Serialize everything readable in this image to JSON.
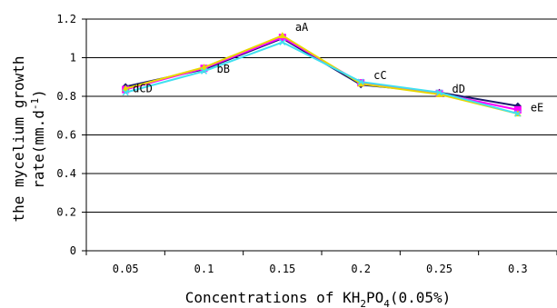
{
  "chart_data": {
    "type": "line",
    "x": [
      "0.05",
      "0.1",
      "0.15",
      "0.2",
      "0.25",
      "0.3"
    ],
    "xlabel": {
      "main": "Concentrations of KH",
      "sub1": "2",
      "mid": "PO",
      "sub2": "4",
      "tail": "(0.05%)"
    },
    "ylabel": {
      "line1": "the mycelium growth",
      "line2_main": "rate(mm.d",
      "line2_sup": "-1",
      "line2_tail": ")"
    },
    "yticks": [
      "0",
      "0.2",
      "0.4",
      "0.6",
      "0.8",
      "1",
      "1.2"
    ],
    "ylim": [
      0,
      1.2
    ],
    "grid": true,
    "series": [
      {
        "color": "#1a1a6e",
        "marker": "diamond",
        "values": [
          0.85,
          0.94,
          1.1,
          0.86,
          0.82,
          0.75
        ]
      },
      {
        "color": "#ff00ff",
        "marker": "square",
        "values": [
          0.835,
          0.945,
          1.105,
          0.87,
          0.815,
          0.73
        ]
      },
      {
        "color": "#e8d800",
        "marker": "triangle",
        "values": [
          0.84,
          0.95,
          1.115,
          0.865,
          0.81,
          0.71
        ]
      },
      {
        "color": "#40e0f0",
        "marker": "x",
        "values": [
          0.82,
          0.93,
          1.08,
          0.875,
          0.82,
          0.71
        ]
      }
    ],
    "annotations": [
      "dCD",
      "bB",
      "aA",
      "cC",
      "dD",
      "eE"
    ]
  }
}
